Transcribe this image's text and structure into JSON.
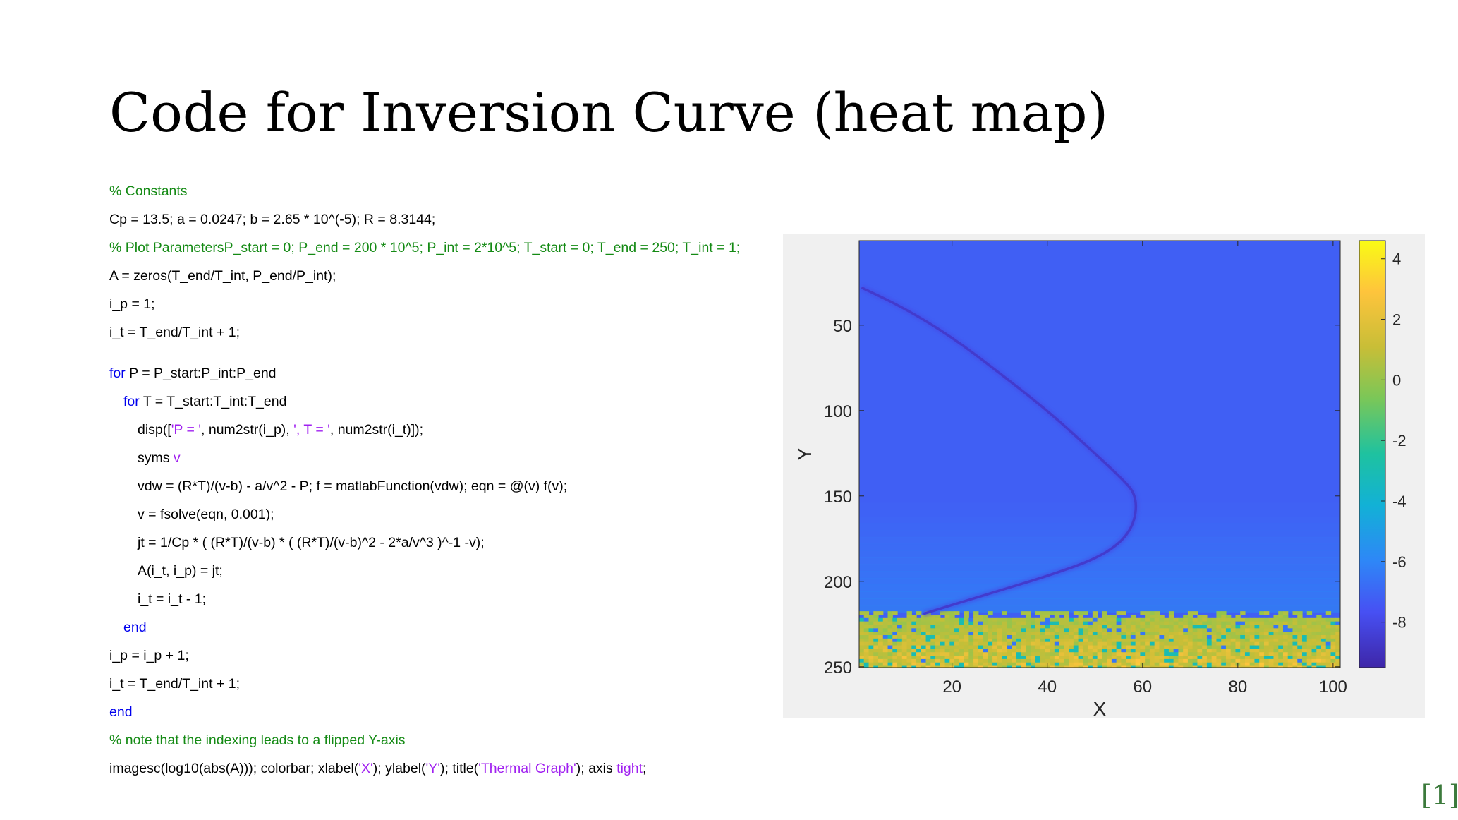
{
  "slide": {
    "title": "Code for Inversion Curve (heat map)",
    "citation": "[1]"
  },
  "code": {
    "lines": [
      {
        "indent": 0,
        "segments": [
          {
            "text": "% Constants",
            "color": "green"
          }
        ]
      },
      {
        "indent": 0,
        "segments": [
          {
            "text": "Cp = 13.5; a = 0.0247; b = 2.65 * 10^(-5); R = 8.3144;",
            "color": "black"
          }
        ]
      },
      {
        "indent": 0,
        "segments": [
          {
            "text": "% Plot ParametersP_start = 0; P_end = 200 * 10^5; P_int = 2*10^5; T_start = 0; T_end = 250; T_int = 1;",
            "color": "green"
          }
        ]
      },
      {
        "indent": 0,
        "segments": [
          {
            "text": "A = zeros(T_end/T_int, P_end/P_int);",
            "color": "black"
          }
        ]
      },
      {
        "indent": 0,
        "segments": [
          {
            "text": "i_p = 1;",
            "color": "black"
          }
        ]
      },
      {
        "indent": 0,
        "segments": [
          {
            "text": "i_t = T_end/T_int + 1;",
            "color": "black"
          }
        ]
      },
      {
        "indent": 0,
        "gap": true,
        "segments": [
          {
            "text": "for",
            "color": "blue"
          },
          {
            "text": " P = P_start:P_int:P_end",
            "color": "black"
          }
        ]
      },
      {
        "indent": 1,
        "segments": [
          {
            "text": "for",
            "color": "blue"
          },
          {
            "text": " T = T_start:T_int:T_end",
            "color": "black"
          }
        ]
      },
      {
        "indent": 2,
        "segments": [
          {
            "text": "disp([",
            "color": "black"
          },
          {
            "text": "'P = '",
            "color": "purple"
          },
          {
            "text": ", num2str(i_p), ",
            "color": "black"
          },
          {
            "text": "', T = '",
            "color": "purple"
          },
          {
            "text": ", num2str(i_t)]);",
            "color": "black"
          }
        ]
      },
      {
        "indent": 2,
        "segments": [
          {
            "text": "syms ",
            "color": "black"
          },
          {
            "text": "v",
            "color": "purple"
          }
        ]
      },
      {
        "indent": 2,
        "segments": [
          {
            "text": "vdw = (R*T)/(v-b) - a/v^2 - P; f = matlabFunction(vdw); eqn = @(v) f(v);",
            "color": "black"
          }
        ]
      },
      {
        "indent": 2,
        "segments": [
          {
            "text": "v = fsolve(eqn, 0.001);",
            "color": "black"
          }
        ]
      },
      {
        "indent": 2,
        "segments": [
          {
            "text": "jt = 1/Cp * ( (R*T)/(v-b) * ( (R*T)/(v-b)^2 - 2*a/v^3 )^-1 -v);",
            "color": "black"
          }
        ]
      },
      {
        "indent": 2,
        "segments": [
          {
            "text": "A(i_t, i_p) = jt;",
            "color": "black"
          }
        ]
      },
      {
        "indent": 2,
        "segments": [
          {
            "text": "i_t = i_t - 1;",
            "color": "black"
          }
        ]
      },
      {
        "indent": 1,
        "segments": [
          {
            "text": "end",
            "color": "blue"
          }
        ]
      },
      {
        "indent": 0,
        "segments": [
          {
            "text": "i_p = i_p + 1;",
            "color": "black"
          }
        ]
      },
      {
        "indent": 0,
        "segments": [
          {
            "text": "i_t = T_end/T_int + 1;",
            "color": "black"
          }
        ]
      },
      {
        "indent": 0,
        "segments": [
          {
            "text": "end",
            "color": "blue"
          }
        ]
      },
      {
        "indent": 0,
        "segments": [
          {
            "text": "% note that the indexing leads to a flipped Y-axis",
            "color": "green"
          }
        ]
      },
      {
        "indent": 0,
        "segments": [
          {
            "text": "imagesc(log10(abs(A))); colorbar; xlabel(",
            "color": "black"
          },
          {
            "text": "'X'",
            "color": "purple"
          },
          {
            "text": "); ylabel(",
            "color": "black"
          },
          {
            "text": "'Y'",
            "color": "purple"
          },
          {
            "text": "); title(",
            "color": "black"
          },
          {
            "text": "'Thermal Graph'",
            "color": "purple"
          },
          {
            "text": "); axis ",
            "color": "black"
          },
          {
            "text": "tight",
            "color": "purple"
          },
          {
            "text": ";",
            "color": "black"
          }
        ]
      }
    ]
  },
  "colors": {
    "green": "#148a14",
    "blue": "#0000ee",
    "purple": "#a020f0",
    "black": "#000000"
  },
  "chart_data": {
    "type": "heatmap",
    "xlabel": "X",
    "ylabel": "Y",
    "xlim": [
      0.5,
      101.5
    ],
    "ylim": [
      0.5,
      250.5
    ],
    "y_reversed": true,
    "x_ticks": [
      20,
      40,
      60,
      80,
      100
    ],
    "y_ticks": [
      50,
      100,
      150,
      200,
      250
    ],
    "colorbar": {
      "location": "right",
      "range": [
        -9.5,
        4.6
      ],
      "ticks": [
        4,
        2,
        0,
        -2,
        -4,
        -6,
        -8
      ],
      "colormap": "parula"
    },
    "grid": false,
    "regions": {
      "background_value": -7.2,
      "inversion_curve": {
        "description_value": -8.6,
        "points": [
          [
            1,
            28
          ],
          [
            10,
            40
          ],
          [
            20,
            57
          ],
          [
            30,
            78
          ],
          [
            40,
            100
          ],
          [
            48,
            120
          ],
          [
            55,
            138
          ],
          [
            59,
            150
          ],
          [
            58,
            170
          ],
          [
            52,
            185
          ],
          [
            40,
            197
          ],
          [
            28,
            207
          ],
          [
            14,
            219
          ]
        ]
      },
      "noisy_band": {
        "y_start": 218,
        "y_end": 250,
        "value_range": [
          -1.5,
          2.5
        ]
      }
    }
  }
}
